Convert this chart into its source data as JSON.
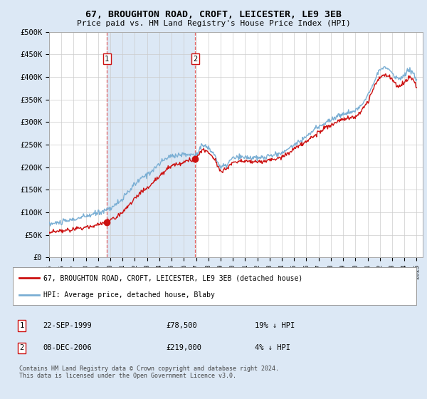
{
  "title": "67, BROUGHTON ROAD, CROFT, LEICESTER, LE9 3EB",
  "subtitle": "Price paid vs. HM Land Registry's House Price Index (HPI)",
  "ylim": [
    0,
    500000
  ],
  "yticks": [
    0,
    50000,
    100000,
    150000,
    200000,
    250000,
    300000,
    350000,
    400000,
    450000,
    500000
  ],
  "ytick_labels": [
    "£0",
    "£50K",
    "£100K",
    "£150K",
    "£200K",
    "£250K",
    "£300K",
    "£350K",
    "£400K",
    "£450K",
    "£500K"
  ],
  "background_color": "#dce8f5",
  "plot_bg": "#ffffff",
  "shade_color": "#dce8f5",
  "legend_entry1": "67, BROUGHTON ROAD, CROFT, LEICESTER, LE9 3EB (detached house)",
  "legend_entry2": "HPI: Average price, detached house, Blaby",
  "annotation1_date": "22-SEP-1999",
  "annotation1_price": "£78,500",
  "annotation1_hpi": "19% ↓ HPI",
  "annotation2_date": "08-DEC-2006",
  "annotation2_price": "£219,000",
  "annotation2_hpi": "4% ↓ HPI",
  "footer": "Contains HM Land Registry data © Crown copyright and database right 2024.\nThis data is licensed under the Open Government Licence v3.0.",
  "hpi_color": "#7bafd4",
  "price_color": "#cc1111",
  "vline_color": "#e06060",
  "marker1_x": 1999.72,
  "marker1_y": 78500,
  "marker2_x": 2006.93,
  "marker2_y": 219000,
  "xmin": 1995,
  "xmax": 2025.5
}
